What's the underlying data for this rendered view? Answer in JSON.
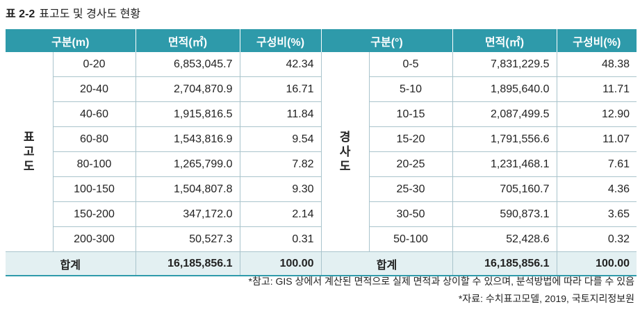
{
  "title": {
    "number": "표 2-2",
    "text": "표고도 및 경사도 현황"
  },
  "headers": {
    "left_range": "구분(m)",
    "left_area": "면적(㎡)",
    "left_ratio": "구성비(%)",
    "right_range": "구분(°)",
    "right_area": "면적(㎡)",
    "right_ratio": "구성비(%)"
  },
  "left_category": "표고도",
  "right_category": "경사도",
  "elevation_rows": [
    {
      "range": "0-20",
      "area": "6,853,045.7",
      "ratio": "42.34"
    },
    {
      "range": "20-40",
      "area": "2,704,870.9",
      "ratio": "16.71"
    },
    {
      "range": "40-60",
      "area": "1,915,816.5",
      "ratio": "11.84"
    },
    {
      "range": "60-80",
      "area": "1,543,816.9",
      "ratio": "9.54"
    },
    {
      "range": "80-100",
      "area": "1,265,799.0",
      "ratio": "7.82"
    },
    {
      "range": "100-150",
      "area": "1,504,807.8",
      "ratio": "9.30"
    },
    {
      "range": "150-200",
      "area": "347,172.0",
      "ratio": "2.14"
    },
    {
      "range": "200-300",
      "area": "50,527.3",
      "ratio": "0.31"
    }
  ],
  "slope_rows": [
    {
      "range": "0-5",
      "area": "7,831,229.5",
      "ratio": "48.38"
    },
    {
      "range": "5-10",
      "area": "1,895,640.0",
      "ratio": "11.71"
    },
    {
      "range": "10-15",
      "area": "2,087,499.5",
      "ratio": "12.90"
    },
    {
      "range": "15-20",
      "area": "1,791,556.6",
      "ratio": "11.07"
    },
    {
      "range": "20-25",
      "area": "1,231,468.1",
      "ratio": "7.61"
    },
    {
      "range": "25-30",
      "area": "705,160.7",
      "ratio": "4.36"
    },
    {
      "range": "30-50",
      "area": "590,873.1",
      "ratio": "3.65"
    },
    {
      "range": "50-100",
      "area": "52,428.6",
      "ratio": "0.32"
    }
  ],
  "totals": {
    "label": "합계",
    "left_area": "16,185,856.1",
    "left_ratio": "100.00",
    "right_area": "16,185,856.1",
    "right_ratio": "100.00"
  },
  "notes": {
    "reference": "*참고: GIS 상에서 계산된 면적으로 실제 면적과 상이할 수 있으며, 분석방법에 따라 다를 수 있음",
    "source": "*자료: 수치표고모델, 2019, 국토지리정보원"
  },
  "colors": {
    "header_bg": "#2e9aaa",
    "total_bg": "#e3f0f2",
    "grid_line": "#a9c4cc"
  }
}
